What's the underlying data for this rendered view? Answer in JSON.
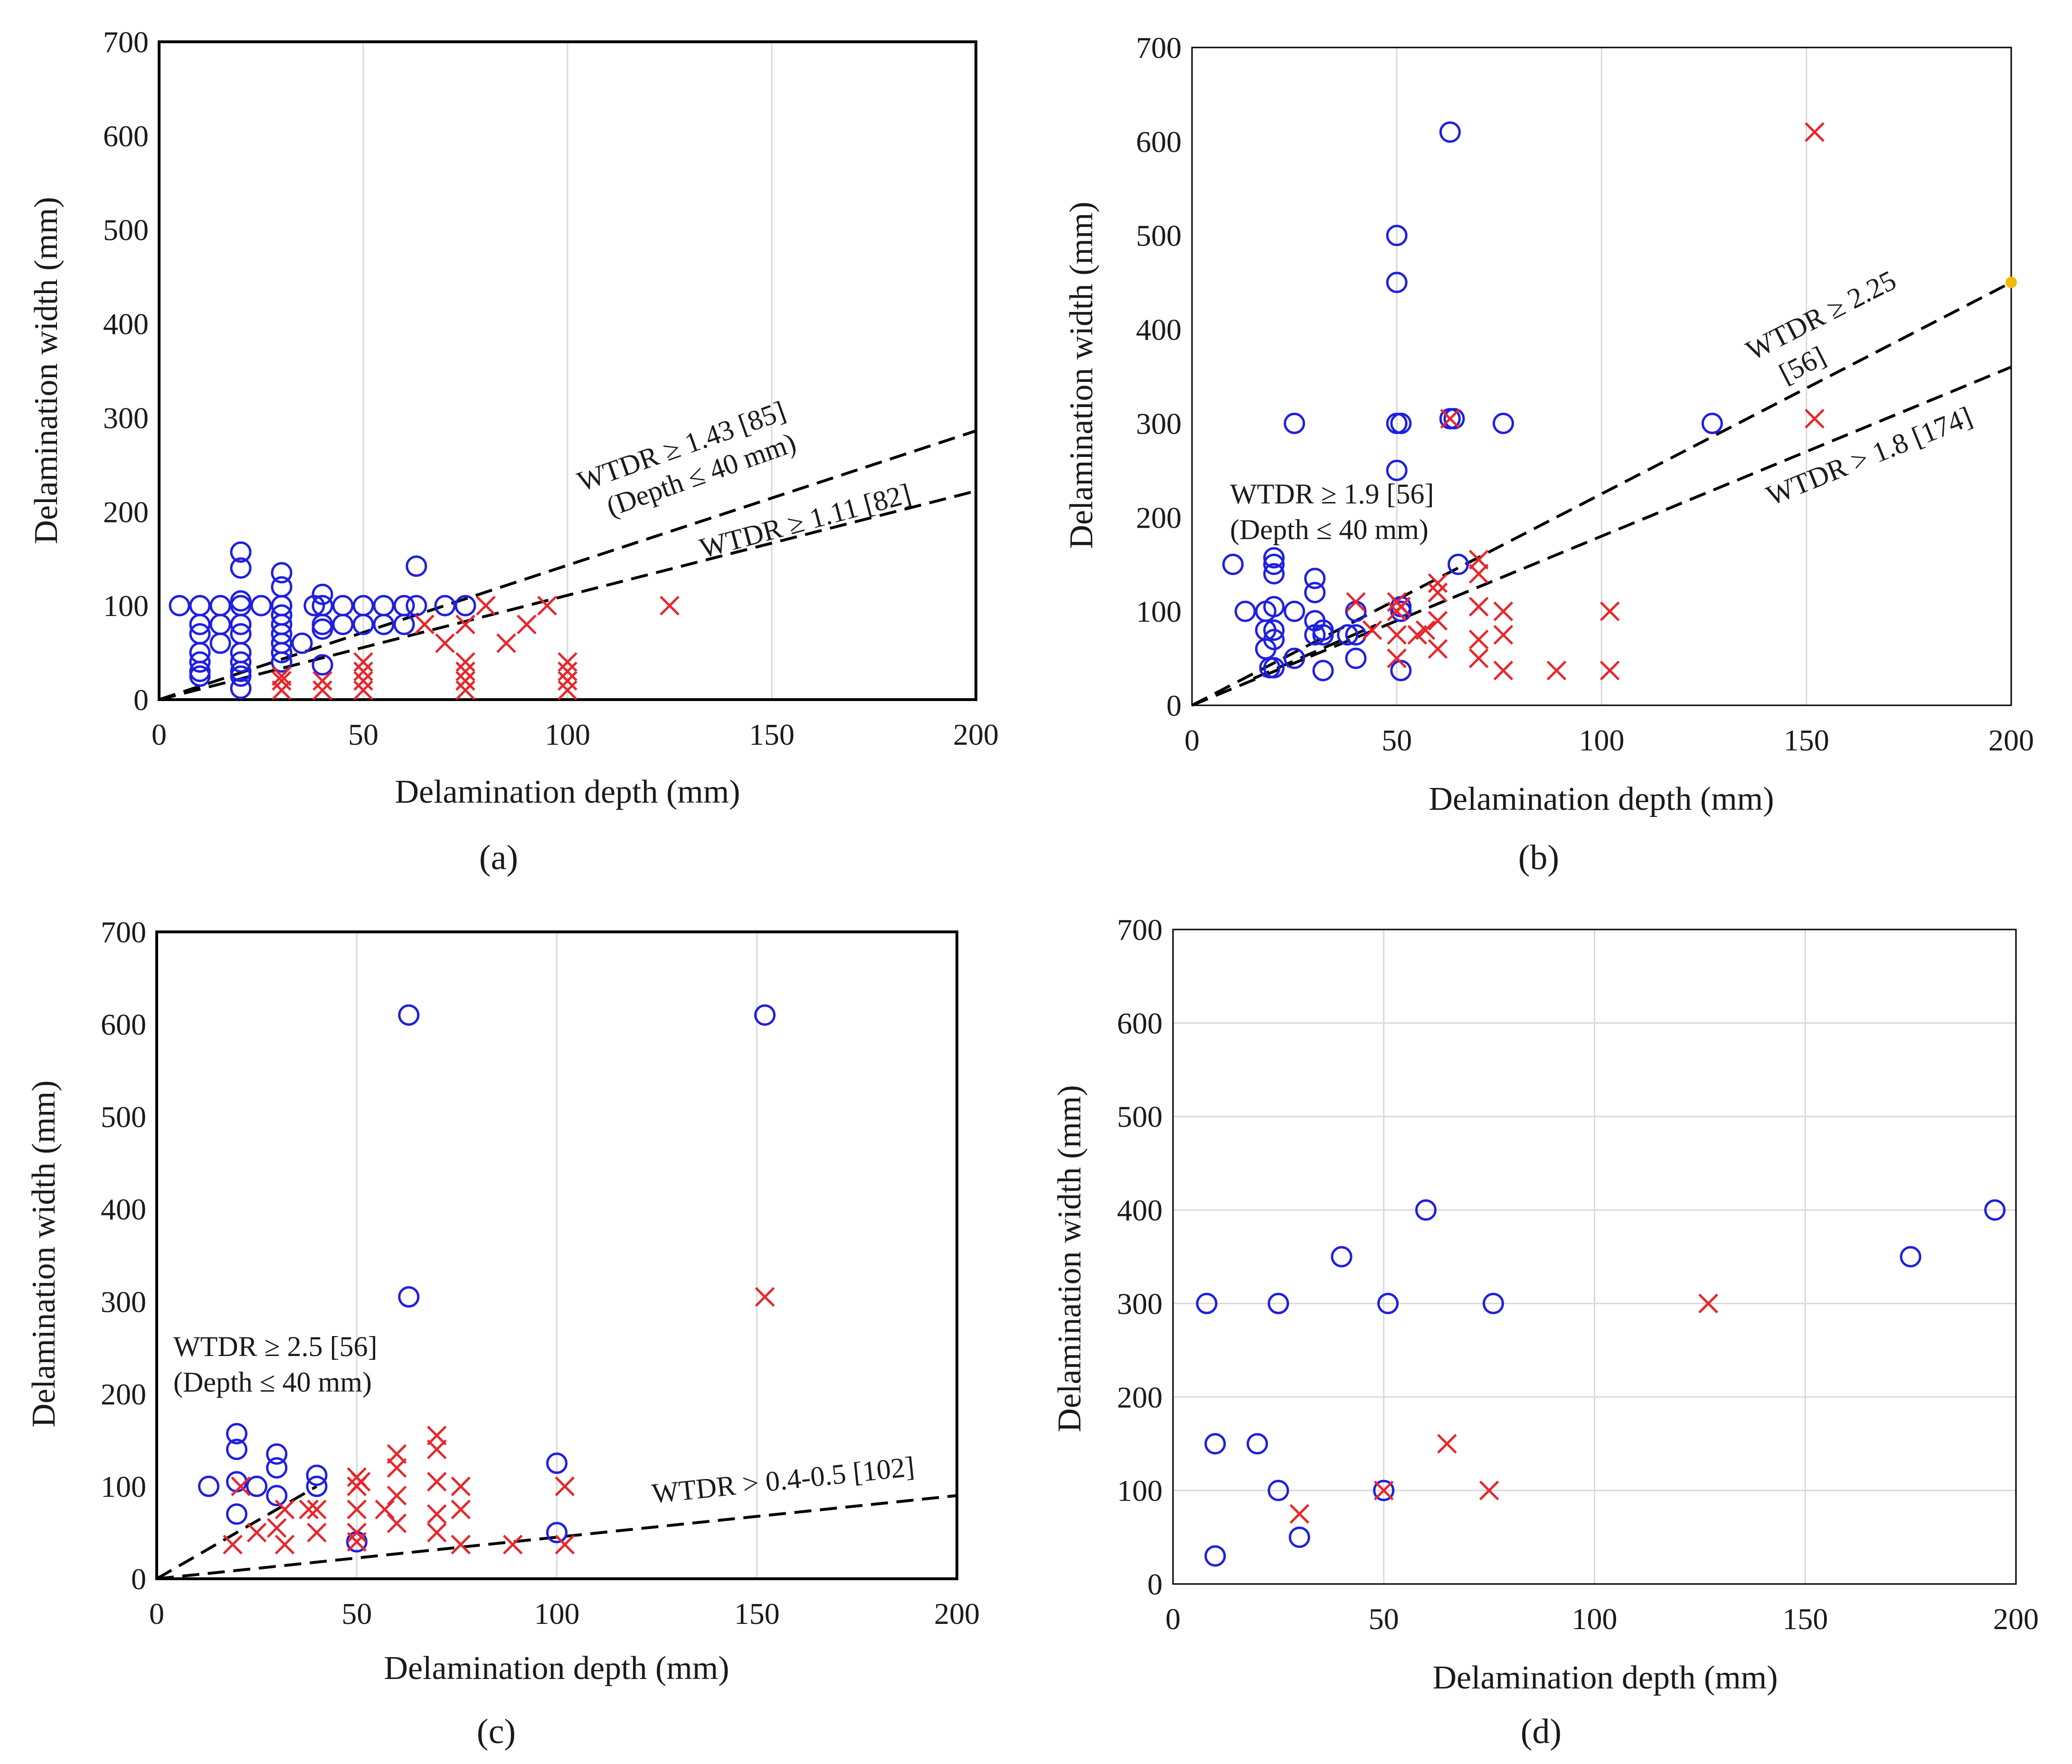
{
  "colors": {
    "circle": "#1f1fe0",
    "cross": "#e8262b",
    "threshold": "#000000",
    "highlight": "#f5b800"
  },
  "chart_data": [
    {
      "type": "scatter",
      "panel": "a",
      "tag_label": "(a)",
      "xlabel": "Delamination depth (mm)",
      "ylabel": "Delamination width (mm)",
      "xlim": [
        0,
        200
      ],
      "ylim": [
        0,
        700
      ],
      "xticks": [
        "0",
        "50",
        "100",
        "150",
        "200"
      ],
      "yticks": [
        "0",
        "100",
        "200",
        "300",
        "400",
        "500",
        "600",
        "700"
      ],
      "grid": "vertical",
      "series": [
        {
          "name": "detected",
          "marker": "circle",
          "points": [
            [
              5,
              100
            ],
            [
              10,
              100
            ],
            [
              10,
              80
            ],
            [
              10,
              70
            ],
            [
              10,
              50
            ],
            [
              10,
              40
            ],
            [
              10,
              30
            ],
            [
              10,
              25
            ],
            [
              15,
              100
            ],
            [
              15,
              80
            ],
            [
              15,
              60
            ],
            [
              20,
              157
            ],
            [
              20,
              140
            ],
            [
              20,
              105
            ],
            [
              20,
              100
            ],
            [
              20,
              80
            ],
            [
              20,
              70
            ],
            [
              20,
              50
            ],
            [
              20,
              40
            ],
            [
              20,
              30
            ],
            [
              20,
              25
            ],
            [
              20,
              12
            ],
            [
              25,
              100
            ],
            [
              30,
              135
            ],
            [
              30,
              120
            ],
            [
              30,
              100
            ],
            [
              30,
              90
            ],
            [
              30,
              80
            ],
            [
              30,
              70
            ],
            [
              30,
              60
            ],
            [
              30,
              50
            ],
            [
              30,
              40
            ],
            [
              35,
              60
            ],
            [
              38,
              100
            ],
            [
              40,
              112
            ],
            [
              40,
              100
            ],
            [
              40,
              80
            ],
            [
              40,
              75
            ],
            [
              40,
              37
            ],
            [
              45,
              100
            ],
            [
              45,
              80
            ],
            [
              50,
              100
            ],
            [
              50,
              80
            ],
            [
              55,
              100
            ],
            [
              55,
              80
            ],
            [
              60,
              100
            ],
            [
              60,
              80
            ],
            [
              63,
              142
            ],
            [
              63,
              100
            ],
            [
              70,
              100
            ],
            [
              75,
              100
            ]
          ]
        },
        {
          "name": "not detected",
          "marker": "cross",
          "points": [
            [
              30,
              25
            ],
            [
              30,
              20
            ],
            [
              30,
              10
            ],
            [
              40,
              20
            ],
            [
              40,
              10
            ],
            [
              50,
              40
            ],
            [
              50,
              30
            ],
            [
              50,
              20
            ],
            [
              50,
              10
            ],
            [
              65,
              80
            ],
            [
              70,
              60
            ],
            [
              75,
              80
            ],
            [
              75,
              40
            ],
            [
              75,
              30
            ],
            [
              75,
              20
            ],
            [
              75,
              10
            ],
            [
              80,
              100
            ],
            [
              85,
              60
            ],
            [
              90,
              80
            ],
            [
              95,
              100
            ],
            [
              100,
              40
            ],
            [
              100,
              30
            ],
            [
              100,
              20
            ],
            [
              100,
              10
            ],
            [
              125,
              100
            ]
          ]
        }
      ],
      "lines": [
        {
          "slope": 1.43,
          "x_range": [
            0,
            200
          ],
          "label": "WTDR ≥ 1.43 [85]",
          "label2": "(Depth ≤ 40 mm)"
        },
        {
          "slope": 1.11,
          "x_range": [
            0,
            200
          ],
          "label": "WTDR ≥ 1.11 [82]"
        }
      ]
    },
    {
      "type": "scatter",
      "panel": "b",
      "tag_label": "(b)",
      "xlabel": "Delamination depth (mm)",
      "ylabel": "Delamination width (mm)",
      "xlim": [
        0,
        200
      ],
      "ylim": [
        0,
        700
      ],
      "xticks": [
        "0",
        "50",
        "100",
        "150",
        "200"
      ],
      "yticks": [
        "0",
        "100",
        "200",
        "300",
        "400",
        "500",
        "600",
        "700"
      ],
      "grid": "vertical",
      "series": [
        {
          "name": "detected",
          "marker": "circle",
          "points": [
            [
              10,
              150
            ],
            [
              13,
              100
            ],
            [
              18,
              100
            ],
            [
              18,
              80
            ],
            [
              18,
              60
            ],
            [
              19,
              40
            ],
            [
              20,
              157
            ],
            [
              20,
              150
            ],
            [
              20,
              140
            ],
            [
              20,
              105
            ],
            [
              20,
              80
            ],
            [
              20,
              70
            ],
            [
              20,
              40
            ],
            [
              25,
              300
            ],
            [
              25,
              100
            ],
            [
              25,
              50
            ],
            [
              30,
              135
            ],
            [
              30,
              120
            ],
            [
              30,
              90
            ],
            [
              30,
              75
            ],
            [
              32,
              80
            ],
            [
              32,
              75
            ],
            [
              32,
              37
            ],
            [
              38,
              75
            ],
            [
              40,
              100
            ],
            [
              40,
              75
            ],
            [
              40,
              50
            ],
            [
              50,
              500
            ],
            [
              50,
              450
            ],
            [
              50,
              300
            ],
            [
              50,
              250
            ],
            [
              51,
              300
            ],
            [
              51,
              105
            ],
            [
              51,
              100
            ],
            [
              51,
              37
            ],
            [
              63,
              610
            ],
            [
              63,
              305
            ],
            [
              64,
              305
            ],
            [
              65,
              150
            ],
            [
              76,
              300
            ],
            [
              127,
              300
            ]
          ]
        },
        {
          "name": "not detected",
          "marker": "cross",
          "points": [
            [
              40,
              110
            ],
            [
              44,
              80
            ],
            [
              50,
              110
            ],
            [
              50,
              100
            ],
            [
              50,
              75
            ],
            [
              50,
              50
            ],
            [
              51,
              105
            ],
            [
              55,
              75
            ],
            [
              57,
              80
            ],
            [
              60,
              130
            ],
            [
              60,
              120
            ],
            [
              60,
              90
            ],
            [
              60,
              60
            ],
            [
              63,
              305
            ],
            [
              70,
              155
            ],
            [
              70,
              140
            ],
            [
              70,
              105
            ],
            [
              70,
              70
            ],
            [
              70,
              50
            ],
            [
              76,
              100
            ],
            [
              76,
              75
            ],
            [
              76,
              37
            ],
            [
              89,
              37
            ],
            [
              102,
              100
            ],
            [
              102,
              37
            ],
            [
              152,
              610
            ],
            [
              152,
              305
            ]
          ]
        }
      ],
      "lines": [
        {
          "slope": 2.25,
          "x_range": [
            0,
            200
          ],
          "label": "WTDR ≥ 2.25",
          "label2": "[56]"
        },
        {
          "slope": 1.8,
          "x_range": [
            0,
            200
          ],
          "label": "WTDR > 1.8 [174]"
        },
        {
          "slope": 1.9,
          "x_range": [
            15,
            45
          ],
          "label": "WTDR ≥ 1.9 [56]",
          "label2": "(Depth ≤ 40 mm)"
        }
      ],
      "highlight_point": [
        200,
        450
      ]
    },
    {
      "type": "scatter",
      "panel": "c",
      "tag_label": "(c)",
      "xlabel": "Delamination depth (mm)",
      "ylabel": "Delamination width (mm)",
      "xlim": [
        0,
        200
      ],
      "ylim": [
        0,
        700
      ],
      "xticks": [
        "0",
        "50",
        "100",
        "150",
        "200"
      ],
      "yticks": [
        "0",
        "100",
        "200",
        "300",
        "400",
        "500",
        "600",
        "700"
      ],
      "grid": "vertical",
      "series": [
        {
          "name": "detected",
          "marker": "circle",
          "points": [
            [
              13,
              100
            ],
            [
              20,
              157
            ],
            [
              20,
              140
            ],
            [
              20,
              105
            ],
            [
              20,
              70
            ],
            [
              25,
              100
            ],
            [
              30,
              135
            ],
            [
              30,
              120
            ],
            [
              30,
              90
            ],
            [
              40,
              112
            ],
            [
              40,
              100
            ],
            [
              50,
              40
            ],
            [
              63,
              610
            ],
            [
              63,
              305
            ],
            [
              100,
              125
            ],
            [
              100,
              50
            ],
            [
              152,
              610
            ]
          ]
        },
        {
          "name": "not detected",
          "marker": "cross",
          "points": [
            [
              19,
              37
            ],
            [
              21,
              100
            ],
            [
              25,
              50
            ],
            [
              30,
              55
            ],
            [
              32,
              75
            ],
            [
              32,
              37
            ],
            [
              38,
              75
            ],
            [
              40,
              75
            ],
            [
              40,
              50
            ],
            [
              50,
              110
            ],
            [
              50,
              100
            ],
            [
              50,
              75
            ],
            [
              50,
              50
            ],
            [
              50,
              40
            ],
            [
              51,
              105
            ],
            [
              57,
              75
            ],
            [
              60,
              135
            ],
            [
              60,
              120
            ],
            [
              60,
              90
            ],
            [
              60,
              60
            ],
            [
              70,
              155
            ],
            [
              70,
              140
            ],
            [
              70,
              105
            ],
            [
              70,
              70
            ],
            [
              70,
              50
            ],
            [
              76,
              100
            ],
            [
              76,
              75
            ],
            [
              76,
              37
            ],
            [
              89,
              37
            ],
            [
              102,
              100
            ],
            [
              102,
              37
            ],
            [
              152,
              305
            ]
          ]
        }
      ],
      "lines": [
        {
          "slope": 2.5,
          "x_range": [
            0,
            40
          ],
          "label": "WTDR ≥ 2.5 [56]",
          "label2": "(Depth ≤ 40 mm)"
        },
        {
          "slope": 0.45,
          "x_range": [
            0,
            200
          ],
          "label": "WTDR > 0.4-0.5 [102]"
        }
      ]
    },
    {
      "type": "scatter",
      "panel": "d",
      "tag_label": "(d)",
      "xlabel": "Delamination depth (mm)",
      "ylabel": "Delamination width (mm)",
      "xlim": [
        0,
        200
      ],
      "ylim": [
        0,
        700
      ],
      "xticks": [
        "0",
        "50",
        "100",
        "150",
        "200"
      ],
      "yticks": [
        "0",
        "100",
        "200",
        "300",
        "400",
        "500",
        "600",
        "700"
      ],
      "grid": "both",
      "series": [
        {
          "name": "detected",
          "marker": "circle",
          "points": [
            [
              8,
              300
            ],
            [
              10,
              150
            ],
            [
              10,
              30
            ],
            [
              20,
              150
            ],
            [
              25,
              300
            ],
            [
              25,
              100
            ],
            [
              30,
              50
            ],
            [
              40,
              350
            ],
            [
              50,
              100
            ],
            [
              51,
              300
            ],
            [
              60,
              400
            ],
            [
              76,
              300
            ],
            [
              175,
              350
            ],
            [
              195,
              400
            ]
          ]
        },
        {
          "name": "not detected",
          "marker": "cross",
          "points": [
            [
              30,
              75
            ],
            [
              50,
              100
            ],
            [
              65,
              150
            ],
            [
              75,
              100
            ],
            [
              127,
              300
            ]
          ]
        }
      ],
      "lines": []
    }
  ]
}
